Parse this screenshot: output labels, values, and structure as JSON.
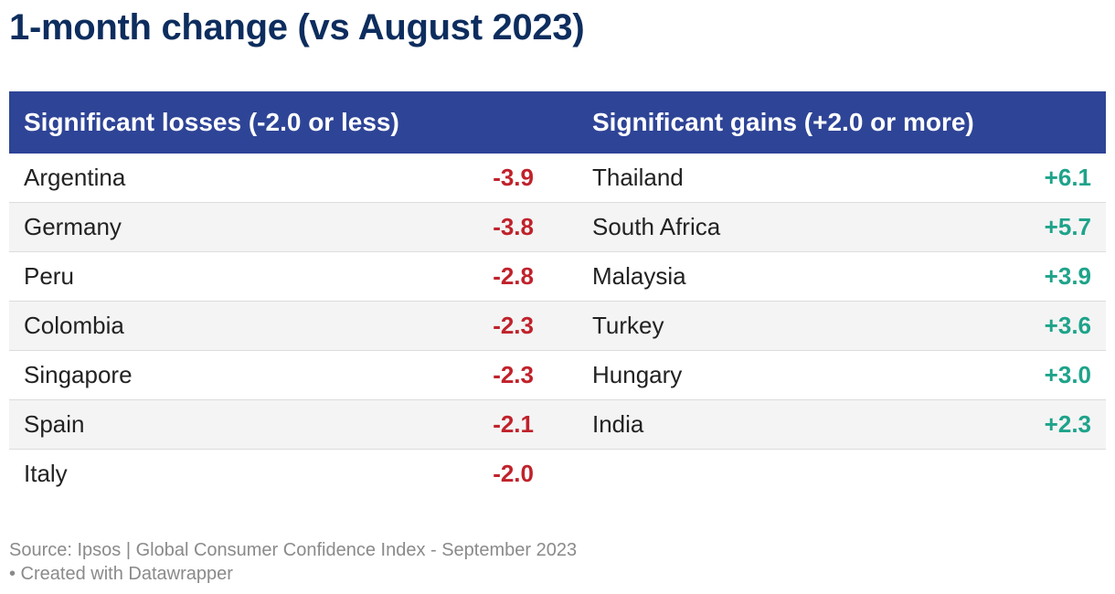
{
  "title": "1-month change (vs August 2023)",
  "colors": {
    "header_bg": "#2e4496",
    "title": "#0d2d5e",
    "loss": "#c0222b",
    "gain": "#1ea38a"
  },
  "chart_data": {
    "type": "table",
    "title": "1-month change (vs August 2023)",
    "columns": [
      "Significant losses (-2.0 or less)",
      "Significant gains (+2.0 or more)"
    ],
    "losses": [
      {
        "country": "Argentina",
        "value": "-3.9"
      },
      {
        "country": "Germany",
        "value": "-3.8"
      },
      {
        "country": "Peru",
        "value": "-2.8"
      },
      {
        "country": "Colombia",
        "value": "-2.3"
      },
      {
        "country": "Singapore",
        "value": "-2.3"
      },
      {
        "country": "Spain",
        "value": "-2.1"
      },
      {
        "country": "Italy",
        "value": "-2.0"
      }
    ],
    "gains": [
      {
        "country": "Thailand",
        "value": "+6.1"
      },
      {
        "country": "South Africa",
        "value": "+5.7"
      },
      {
        "country": "Malaysia",
        "value": "+3.9"
      },
      {
        "country": "Turkey",
        "value": "+3.6"
      },
      {
        "country": "Hungary",
        "value": "+3.0"
      },
      {
        "country": "India",
        "value": "+2.3"
      }
    ]
  },
  "footer": {
    "source": "Source: Ipsos | Global Consumer Confidence Index - September 2023",
    "credit": "• Created with Datawrapper"
  }
}
